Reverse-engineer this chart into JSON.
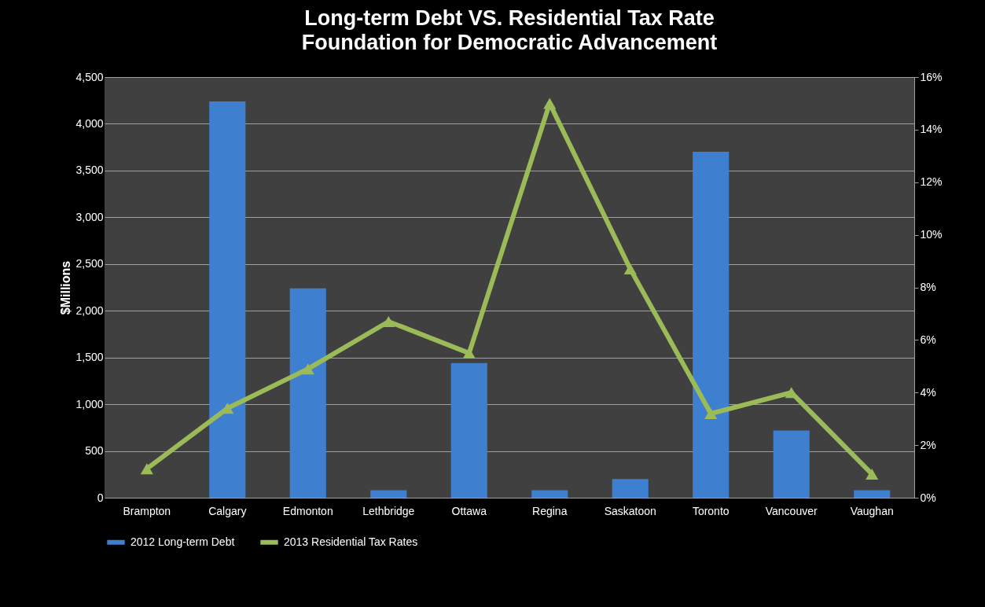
{
  "chart_data": {
    "type": "bar",
    "title": "Long-term Debt VS. Residential Tax Rate",
    "subtitle": "Foundation for Democratic Advancement",
    "ylabel": "$Millions",
    "categories": [
      "Brampton",
      "Calgary",
      "Edmonton",
      "Lethbridge",
      "Ottawa",
      "Regina",
      "Saskatoon",
      "Toronto",
      "Vancouver",
      "Vaughan"
    ],
    "series": [
      {
        "name": "2012 Long-term Debt",
        "color": "#3f7fd0",
        "values": [
          null,
          4240,
          2240,
          80,
          1440,
          80,
          200,
          3700,
          720,
          80
        ]
      },
      {
        "name": "2013 Residential Tax Rates",
        "type": "line",
        "axis": "y2",
        "color": "#9bbb59",
        "marker": "triangle",
        "values": [
          1.1,
          3.4,
          4.9,
          6.7,
          5.5,
          15.0,
          8.7,
          3.2,
          4.0,
          0.9
        ]
      }
    ],
    "ylim": [
      0,
      4500
    ],
    "yticks": [
      0,
      {
        "value": 500,
        "label": "500"
      },
      {
        "value": 1000,
        "label": "1,000"
      },
      {
        "value": 1500,
        "label": "1,500"
      },
      {
        "value": 2000,
        "label": "2,000"
      },
      {
        "value": 2500,
        "label": "2,500"
      },
      {
        "value": 3000,
        "label": "3,000"
      },
      {
        "value": 3500,
        "label": "3,500"
      },
      {
        "value": 4000,
        "label": "4,000"
      },
      {
        "value": 4500,
        "label": "4,500"
      }
    ],
    "y2lim": [
      0,
      16
    ],
    "y2ticks": [
      {
        "value": 0,
        "label": "0%"
      },
      {
        "value": 2,
        "label": "2%"
      },
      {
        "value": 4,
        "label": "4%"
      },
      {
        "value": 6,
        "label": "6%"
      },
      {
        "value": 8,
        "label": "8%"
      },
      {
        "value": 10,
        "label": "10%"
      },
      {
        "value": 12,
        "label": "12%"
      },
      {
        "value": 14,
        "label": "14%"
      },
      {
        "value": 16,
        "label": "16%"
      }
    ],
    "grid": "y",
    "legend": "bottom"
  }
}
